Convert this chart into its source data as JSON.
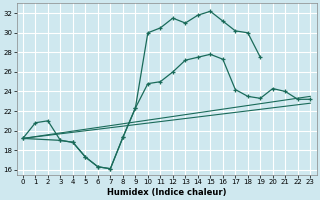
{
  "xlabel": "Humidex (Indice chaleur)",
  "bg_color": "#cfe8ef",
  "grid_color": "#ffffff",
  "line_color": "#1a6b5a",
  "xlim": [
    -0.5,
    23.5
  ],
  "ylim": [
    15.5,
    33.0
  ],
  "xticks": [
    0,
    1,
    2,
    3,
    4,
    5,
    6,
    7,
    8,
    9,
    10,
    11,
    12,
    13,
    14,
    15,
    16,
    17,
    18,
    19,
    20,
    21,
    22,
    23
  ],
  "yticks": [
    16,
    18,
    20,
    22,
    24,
    26,
    28,
    30,
    32
  ],
  "curve1": {
    "x": [
      0,
      1,
      2,
      3,
      4,
      5,
      6,
      7,
      8,
      9,
      10,
      11,
      12,
      13,
      14,
      15,
      16,
      17,
      18,
      19
    ],
    "y": [
      19.2,
      20.8,
      21.0,
      19.0,
      18.8,
      17.3,
      16.3,
      16.1,
      19.3,
      22.3,
      30.0,
      30.5,
      31.5,
      31.0,
      31.8,
      32.2,
      31.2,
      30.2,
      30.0,
      27.5
    ]
  },
  "curve2": {
    "x": [
      0,
      3,
      4,
      5,
      6,
      7,
      8,
      9,
      10,
      11,
      12,
      13,
      14,
      15,
      16,
      17,
      18,
      19,
      20,
      21,
      22,
      23
    ],
    "y": [
      19.2,
      19.0,
      18.8,
      17.3,
      16.3,
      16.1,
      19.3,
      22.3,
      24.8,
      25.0,
      26.0,
      27.2,
      27.5,
      27.8,
      27.3,
      24.2,
      23.5,
      23.3,
      24.3,
      24.0,
      23.2,
      23.2
    ]
  },
  "line3": {
    "x": [
      0,
      23
    ],
    "y": [
      19.2,
      22.8
    ]
  },
  "line4": {
    "x": [
      0,
      23
    ],
    "y": [
      19.2,
      23.5
    ]
  }
}
